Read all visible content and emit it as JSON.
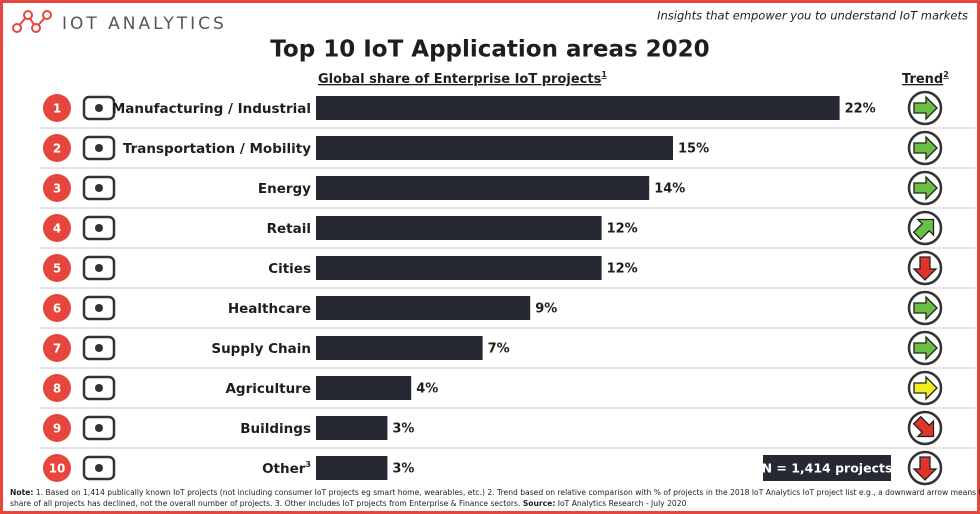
{
  "brand": "IOT ANALYTICS",
  "tagline": "Insights that empower you to understand IoT markets",
  "chart_data": {
    "type": "bar",
    "title": "Top 10 IoT Application areas 2020",
    "x_label": "Global share of Enterprise IoT projects",
    "x_label_note": "1",
    "trend_label": "Trend",
    "trend_label_note": "2",
    "ranks": [
      1,
      2,
      3,
      4,
      5,
      6,
      7,
      8,
      9,
      10
    ],
    "categories": [
      "Manufacturing / Industrial",
      "Transportation / Mobility",
      "Energy",
      "Retail",
      "Cities",
      "Healthcare",
      "Supply Chain",
      "Agriculture",
      "Buildings",
      "Other"
    ],
    "other_note": "3",
    "values": [
      22,
      15,
      14,
      12,
      12,
      9,
      7,
      4,
      3,
      3
    ],
    "value_labels": [
      "22%",
      "15%",
      "14%",
      "12%",
      "12%",
      "9%",
      "7%",
      "4%",
      "3%",
      "3%"
    ],
    "color": "#262833",
    "rank_color": "#e8463c",
    "trend_arrows": [
      {
        "direction": 0,
        "color": "#6cbf45"
      },
      {
        "direction": 0,
        "color": "#6cbf45"
      },
      {
        "direction": 0,
        "color": "#6cbf45"
      },
      {
        "direction": -45,
        "color": "#6cbf45"
      },
      {
        "direction": 90,
        "color": "#e0332b"
      },
      {
        "direction": 0,
        "color": "#6cbf45"
      },
      {
        "direction": 0,
        "color": "#6cbf45"
      },
      {
        "direction": 0,
        "color": "#f2ee1c"
      },
      {
        "direction": 45,
        "color": "#e0332b"
      },
      {
        "direction": 90,
        "color": "#e0332b"
      }
    ],
    "sample_box": "N = 1,414 projects"
  },
  "note_label": "Note:",
  "note_lines": [
    "1. Based on 1,414 publically known IoT projects (not including consumer IoT projects eg smart home, wearables, etc.) 2. Trend based on relative comparison with % of projects in the 2018 IoT Analytics IoT project list e.g., a downward arrow means the relative",
    "share of all projects has declined, not the overall number of projects. 3. Other includes IoT projects from Enterprise & Finance sectors."
  ],
  "source_label": "Source:",
  "source": "IoT Analytics Research - July 2020"
}
